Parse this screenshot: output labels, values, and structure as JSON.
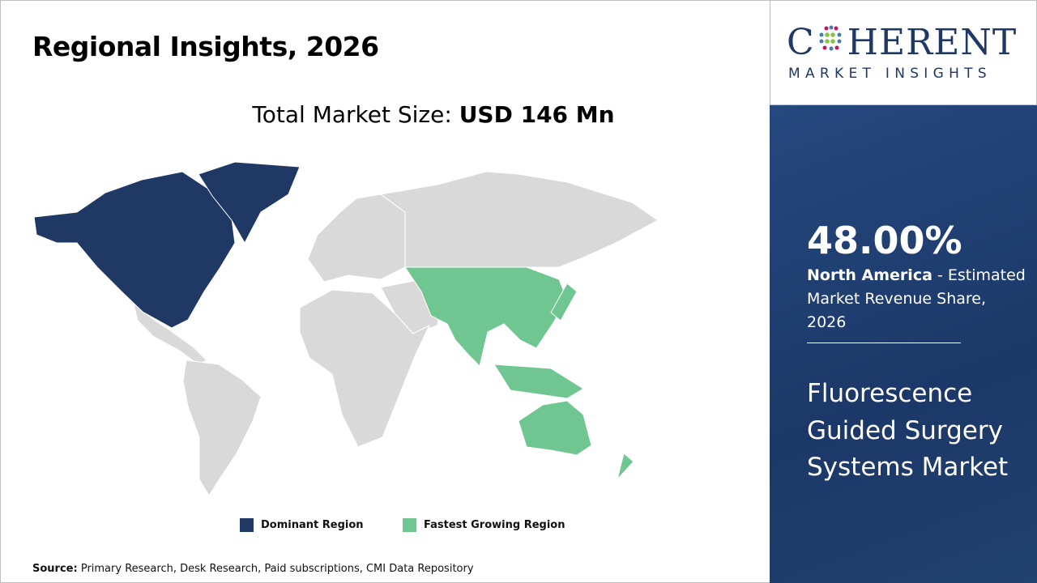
{
  "header": {
    "title": "Regional Insights, 2026"
  },
  "market_size": {
    "label": "Total Market Size:",
    "value": "USD 146 Mn"
  },
  "map": {
    "dominant_region": "North America",
    "fastest_growing_region": "Asia Pacific",
    "colors": {
      "dominant": "#1f3864",
      "fastest": "#6fc691",
      "other": "#d9d9d9"
    }
  },
  "legend": {
    "dominant": "Dominant Region",
    "fastest": "Fastest Growing Region"
  },
  "source": {
    "label": "Source:",
    "text": "Primary Research, Desk Research, Paid subscriptions, CMI Data Repository"
  },
  "logo": {
    "top": "COHERENT",
    "bottom": "MARKET INSIGHTS"
  },
  "panel": {
    "share": "48.00%",
    "region": "North America",
    "share_desc": " - Estimated Market Revenue Share, 2026",
    "market_name": "Fluorescence Guided Surgery Systems Market"
  }
}
